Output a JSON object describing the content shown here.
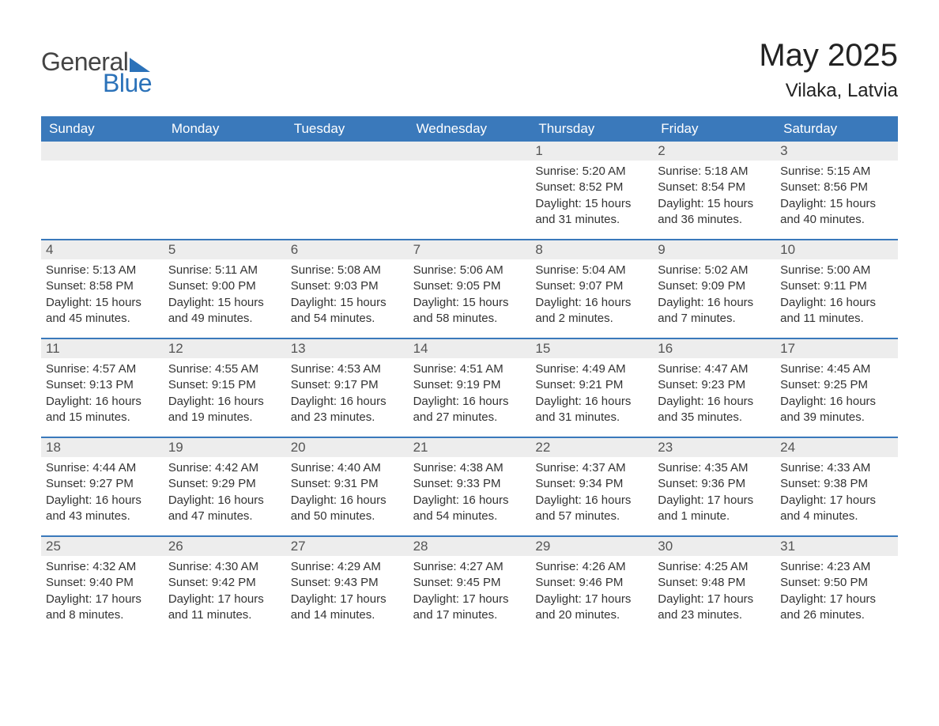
{
  "logo": {
    "text1": "General",
    "text2": "Blue"
  },
  "title": "May 2025",
  "location": "Vilaka, Latvia",
  "colors": {
    "header_bg": "#3a79bb",
    "header_text": "#ffffff",
    "day_bg": "#ededed",
    "text": "#333333",
    "brand_blue": "#2b72b9",
    "brand_gray": "#444444"
  },
  "weekdays": [
    "Sunday",
    "Monday",
    "Tuesday",
    "Wednesday",
    "Thursday",
    "Friday",
    "Saturday"
  ],
  "weeks": [
    [
      {
        "n": "",
        "sr": "",
        "ss": "",
        "dl": ""
      },
      {
        "n": "",
        "sr": "",
        "ss": "",
        "dl": ""
      },
      {
        "n": "",
        "sr": "",
        "ss": "",
        "dl": ""
      },
      {
        "n": "",
        "sr": "",
        "ss": "",
        "dl": ""
      },
      {
        "n": "1",
        "sr": "Sunrise: 5:20 AM",
        "ss": "Sunset: 8:52 PM",
        "dl": "Daylight: 15 hours and 31 minutes."
      },
      {
        "n": "2",
        "sr": "Sunrise: 5:18 AM",
        "ss": "Sunset: 8:54 PM",
        "dl": "Daylight: 15 hours and 36 minutes."
      },
      {
        "n": "3",
        "sr": "Sunrise: 5:15 AM",
        "ss": "Sunset: 8:56 PM",
        "dl": "Daylight: 15 hours and 40 minutes."
      }
    ],
    [
      {
        "n": "4",
        "sr": "Sunrise: 5:13 AM",
        "ss": "Sunset: 8:58 PM",
        "dl": "Daylight: 15 hours and 45 minutes."
      },
      {
        "n": "5",
        "sr": "Sunrise: 5:11 AM",
        "ss": "Sunset: 9:00 PM",
        "dl": "Daylight: 15 hours and 49 minutes."
      },
      {
        "n": "6",
        "sr": "Sunrise: 5:08 AM",
        "ss": "Sunset: 9:03 PM",
        "dl": "Daylight: 15 hours and 54 minutes."
      },
      {
        "n": "7",
        "sr": "Sunrise: 5:06 AM",
        "ss": "Sunset: 9:05 PM",
        "dl": "Daylight: 15 hours and 58 minutes."
      },
      {
        "n": "8",
        "sr": "Sunrise: 5:04 AM",
        "ss": "Sunset: 9:07 PM",
        "dl": "Daylight: 16 hours and 2 minutes."
      },
      {
        "n": "9",
        "sr": "Sunrise: 5:02 AM",
        "ss": "Sunset: 9:09 PM",
        "dl": "Daylight: 16 hours and 7 minutes."
      },
      {
        "n": "10",
        "sr": "Sunrise: 5:00 AM",
        "ss": "Sunset: 9:11 PM",
        "dl": "Daylight: 16 hours and 11 minutes."
      }
    ],
    [
      {
        "n": "11",
        "sr": "Sunrise: 4:57 AM",
        "ss": "Sunset: 9:13 PM",
        "dl": "Daylight: 16 hours and 15 minutes."
      },
      {
        "n": "12",
        "sr": "Sunrise: 4:55 AM",
        "ss": "Sunset: 9:15 PM",
        "dl": "Daylight: 16 hours and 19 minutes."
      },
      {
        "n": "13",
        "sr": "Sunrise: 4:53 AM",
        "ss": "Sunset: 9:17 PM",
        "dl": "Daylight: 16 hours and 23 minutes."
      },
      {
        "n": "14",
        "sr": "Sunrise: 4:51 AM",
        "ss": "Sunset: 9:19 PM",
        "dl": "Daylight: 16 hours and 27 minutes."
      },
      {
        "n": "15",
        "sr": "Sunrise: 4:49 AM",
        "ss": "Sunset: 9:21 PM",
        "dl": "Daylight: 16 hours and 31 minutes."
      },
      {
        "n": "16",
        "sr": "Sunrise: 4:47 AM",
        "ss": "Sunset: 9:23 PM",
        "dl": "Daylight: 16 hours and 35 minutes."
      },
      {
        "n": "17",
        "sr": "Sunrise: 4:45 AM",
        "ss": "Sunset: 9:25 PM",
        "dl": "Daylight: 16 hours and 39 minutes."
      }
    ],
    [
      {
        "n": "18",
        "sr": "Sunrise: 4:44 AM",
        "ss": "Sunset: 9:27 PM",
        "dl": "Daylight: 16 hours and 43 minutes."
      },
      {
        "n": "19",
        "sr": "Sunrise: 4:42 AM",
        "ss": "Sunset: 9:29 PM",
        "dl": "Daylight: 16 hours and 47 minutes."
      },
      {
        "n": "20",
        "sr": "Sunrise: 4:40 AM",
        "ss": "Sunset: 9:31 PM",
        "dl": "Daylight: 16 hours and 50 minutes."
      },
      {
        "n": "21",
        "sr": "Sunrise: 4:38 AM",
        "ss": "Sunset: 9:33 PM",
        "dl": "Daylight: 16 hours and 54 minutes."
      },
      {
        "n": "22",
        "sr": "Sunrise: 4:37 AM",
        "ss": "Sunset: 9:34 PM",
        "dl": "Daylight: 16 hours and 57 minutes."
      },
      {
        "n": "23",
        "sr": "Sunrise: 4:35 AM",
        "ss": "Sunset: 9:36 PM",
        "dl": "Daylight: 17 hours and 1 minute."
      },
      {
        "n": "24",
        "sr": "Sunrise: 4:33 AM",
        "ss": "Sunset: 9:38 PM",
        "dl": "Daylight: 17 hours and 4 minutes."
      }
    ],
    [
      {
        "n": "25",
        "sr": "Sunrise: 4:32 AM",
        "ss": "Sunset: 9:40 PM",
        "dl": "Daylight: 17 hours and 8 minutes."
      },
      {
        "n": "26",
        "sr": "Sunrise: 4:30 AM",
        "ss": "Sunset: 9:42 PM",
        "dl": "Daylight: 17 hours and 11 minutes."
      },
      {
        "n": "27",
        "sr": "Sunrise: 4:29 AM",
        "ss": "Sunset: 9:43 PM",
        "dl": "Daylight: 17 hours and 14 minutes."
      },
      {
        "n": "28",
        "sr": "Sunrise: 4:27 AM",
        "ss": "Sunset: 9:45 PM",
        "dl": "Daylight: 17 hours and 17 minutes."
      },
      {
        "n": "29",
        "sr": "Sunrise: 4:26 AM",
        "ss": "Sunset: 9:46 PM",
        "dl": "Daylight: 17 hours and 20 minutes."
      },
      {
        "n": "30",
        "sr": "Sunrise: 4:25 AM",
        "ss": "Sunset: 9:48 PM",
        "dl": "Daylight: 17 hours and 23 minutes."
      },
      {
        "n": "31",
        "sr": "Sunrise: 4:23 AM",
        "ss": "Sunset: 9:50 PM",
        "dl": "Daylight: 17 hours and 26 minutes."
      }
    ]
  ]
}
